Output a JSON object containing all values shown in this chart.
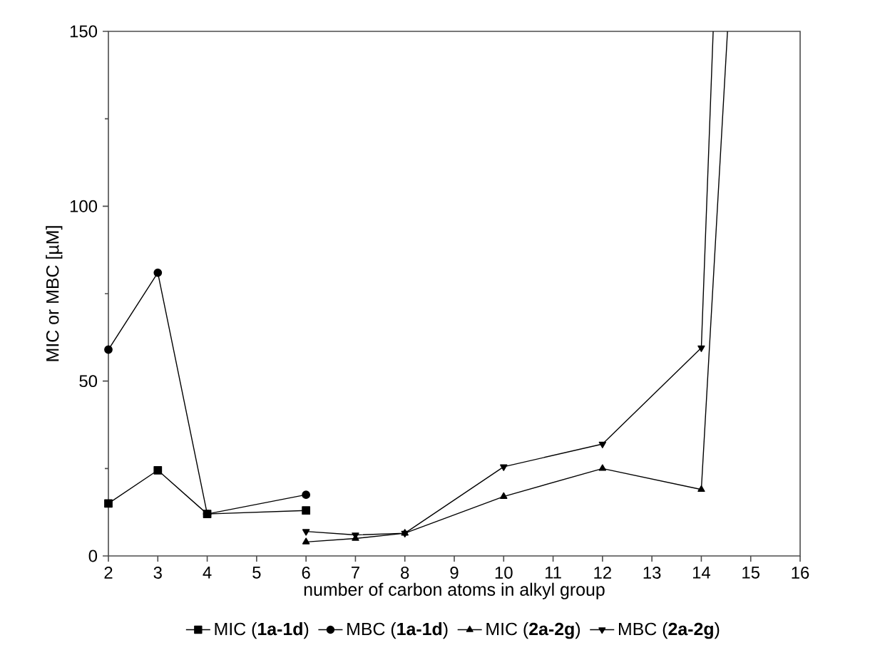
{
  "chart_data": {
    "type": "line",
    "xlabel": "number of carbon atoms in alkyl group",
    "ylabel": "MIC or MBC [µM]",
    "xlim": [
      2,
      16
    ],
    "xticks": [
      2,
      3,
      4,
      5,
      6,
      7,
      8,
      9,
      10,
      11,
      12,
      13,
      14,
      15,
      16
    ],
    "ylim": [
      0,
      150
    ],
    "yticks": [
      0,
      50,
      100,
      150
    ],
    "grid": false,
    "legend": "bottom",
    "series": [
      {
        "name": "MIC (**1a-1d**)",
        "color": "#000000",
        "marker": "square",
        "x": [
          2,
          3,
          4,
          6
        ],
        "values": [
          15,
          24.5,
          12,
          13
        ]
      },
      {
        "name": "MBC (**1a-1d**)",
        "color": "#000000",
        "marker": "circle",
        "x": [
          2,
          3,
          4,
          6
        ],
        "values": [
          59,
          81,
          12,
          17.5
        ]
      },
      {
        "name": "MIC (**2a-2g**)",
        "color": "#000000",
        "marker": "triangle",
        "x": [
          6,
          7,
          8,
          10,
          12,
          14,
          14.53
        ],
        "values": [
          4,
          5,
          6.5,
          17,
          25,
          19,
          150
        ]
      },
      {
        "name": "MBC (**2a-2g**)",
        "color": "#000000",
        "marker": "triangle down",
        "x": [
          6,
          7,
          8,
          10,
          12,
          14,
          14.24
        ],
        "values": [
          7,
          6,
          6.5,
          25.5,
          32,
          59.5,
          150
        ]
      }
    ]
  }
}
